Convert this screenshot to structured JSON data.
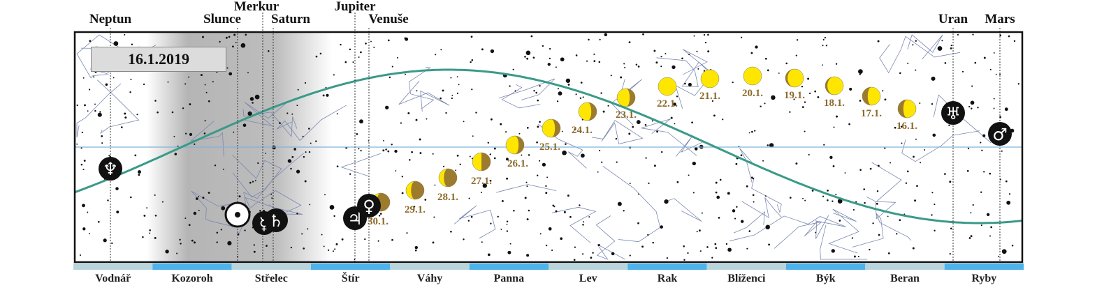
{
  "date": "16.1.2019",
  "colors": {
    "ecliptic": "#3a9a88",
    "equator": "#7fb3d9",
    "moon": "#ffe600",
    "moon_dark": "#9c7a2e",
    "planet_disc": "#111111",
    "band_light": "#b8d4dc",
    "band_dark": "#4db3ea",
    "daylight_shade": "#b3b3b3"
  },
  "planets": [
    {
      "name": "Neptun",
      "icon": "neptune-symbol",
      "glyph": "♆"
    },
    {
      "name": "Slunce",
      "icon": "sun-symbol",
      "glyph": "☉"
    },
    {
      "name": "Merkur",
      "icon": "mercury-symbol",
      "glyph": "☿"
    },
    {
      "name": "Saturn",
      "icon": "saturn-symbol",
      "glyph": "♄"
    },
    {
      "name": "Jupiter",
      "icon": "jupiter-symbol",
      "glyph": "♃"
    },
    {
      "name": "Venuše",
      "icon": "venus-symbol",
      "glyph": "♀"
    },
    {
      "name": "Uran",
      "icon": "uranus-symbol",
      "glyph": "♅"
    },
    {
      "name": "Mars",
      "icon": "mars-symbol",
      "glyph": "♂"
    }
  ],
  "moon_phases": [
    {
      "label": "16.1.",
      "phase": "waxing-gibbous"
    },
    {
      "label": "17.1.",
      "phase": "waxing-gibbous"
    },
    {
      "label": "18.1.",
      "phase": "nearly-full"
    },
    {
      "label": "19.1.",
      "phase": "nearly-full"
    },
    {
      "label": "20.1.",
      "phase": "full"
    },
    {
      "label": "21.1.",
      "phase": "full"
    },
    {
      "label": "22.1.",
      "phase": "full"
    },
    {
      "label": "23.1.",
      "phase": "waning-gibbous"
    },
    {
      "label": "24.1.",
      "phase": "waning-gibbous"
    },
    {
      "label": "25.1.",
      "phase": "waning-gibbous"
    },
    {
      "label": "26.1.",
      "phase": "waning-gibbous"
    },
    {
      "label": "27.1.",
      "phase": "last-quarter"
    },
    {
      "label": "28.1.",
      "phase": "waning-crescent"
    },
    {
      "label": "29.1.",
      "phase": "waning-crescent"
    },
    {
      "label": "30.1.",
      "phase": "waning-crescent"
    }
  ],
  "zodiac": [
    "Vodnář",
    "Kozoroh",
    "Střelec",
    "Štír",
    "Váhy",
    "Panna",
    "Lev",
    "Rak",
    "Blíženci",
    "Býk",
    "Beran",
    "Ryby"
  ]
}
